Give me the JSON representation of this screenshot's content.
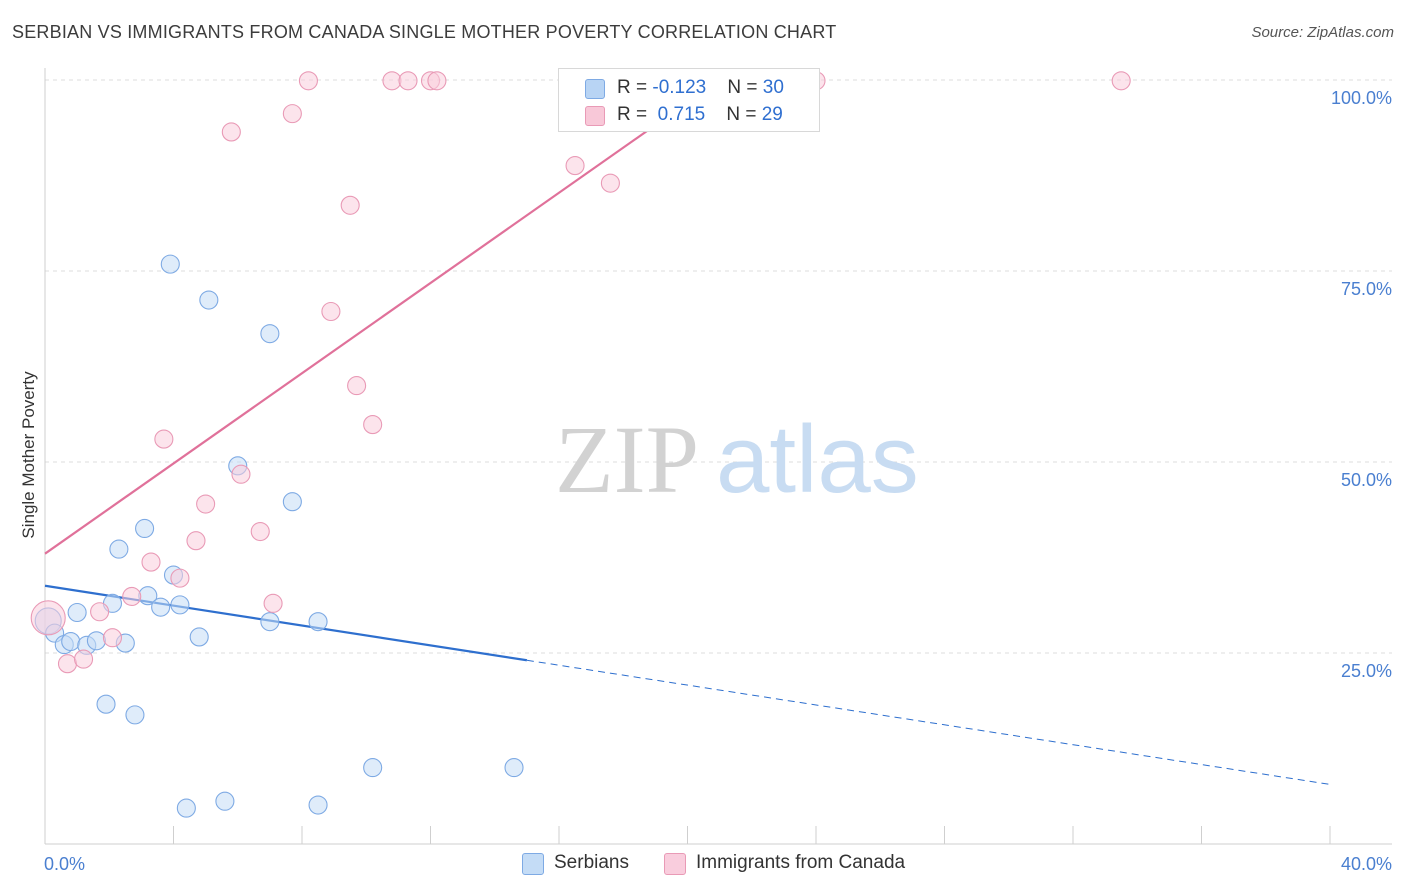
{
  "title": "SERBIAN VS IMMIGRANTS FROM CANADA SINGLE MOTHER POVERTY CORRELATION CHART",
  "source": "Source: ZipAtlas.com",
  "watermark": {
    "zip": "ZIP",
    "atlas": "atlas"
  },
  "legend_stats": [
    {
      "r_label": "R = ",
      "r_value": "-0.123",
      "n_label": "N = ",
      "n_value": "30",
      "color": "#b8d4f4",
      "border": "#7eaae4"
    },
    {
      "r_label": "R = ",
      "r_value": " 0.715",
      "n_label": "N = ",
      "n_value": "29",
      "color": "#f8c8d8",
      "border": "#e99ab6"
    }
  ],
  "chart_data": {
    "type": "scatter",
    "title": "SERBIAN VS IMMIGRANTS FROM CANADA SINGLE MOTHER POVERTY CORRELATION CHART",
    "xlabel": "",
    "ylabel": "Single Mother Poverty",
    "xlim": [
      0,
      40
    ],
    "ylim": [
      0,
      100
    ],
    "x_tick_labels": [
      "0.0%",
      "40.0%"
    ],
    "y_ticks": [
      25,
      50,
      75,
      100
    ],
    "y_tick_labels": [
      "25.0%",
      "50.0%",
      "75.0%",
      "100.0%"
    ],
    "grid": true,
    "series": [
      {
        "name": "Serbians",
        "color": "#7eaae4",
        "fill": "#c4dcf6",
        "points": [
          [
            0.1,
            29.2
          ],
          [
            0.3,
            27.6
          ],
          [
            0.6,
            26.1
          ],
          [
            0.8,
            26.5
          ],
          [
            1.0,
            30.3
          ],
          [
            1.3,
            26.0
          ],
          [
            1.6,
            26.6
          ],
          [
            1.9,
            18.3
          ],
          [
            2.1,
            31.5
          ],
          [
            2.3,
            38.6
          ],
          [
            2.5,
            26.3
          ],
          [
            2.8,
            16.9
          ],
          [
            3.1,
            41.3
          ],
          [
            3.2,
            32.5
          ],
          [
            3.6,
            31.0
          ],
          [
            3.9,
            75.9
          ],
          [
            4.0,
            35.2
          ],
          [
            4.2,
            31.3
          ],
          [
            4.4,
            4.7
          ],
          [
            4.8,
            27.1
          ],
          [
            5.1,
            71.2
          ],
          [
            5.6,
            5.6
          ],
          [
            6.0,
            49.5
          ],
          [
            7.0,
            66.8
          ],
          [
            7.0,
            29.1
          ],
          [
            7.7,
            44.8
          ],
          [
            8.5,
            29.1
          ],
          [
            8.5,
            5.1
          ],
          [
            10.2,
            10.0
          ],
          [
            14.6,
            10.0
          ]
        ]
      },
      {
        "name": "Immigrants from Canada",
        "color": "#e99ab6",
        "fill": "#f9cddd",
        "points": [
          [
            0.1,
            29.6
          ],
          [
            0.7,
            23.6
          ],
          [
            1.2,
            24.2
          ],
          [
            1.7,
            30.4
          ],
          [
            2.1,
            27.0
          ],
          [
            2.7,
            32.4
          ],
          [
            3.3,
            36.9
          ],
          [
            3.7,
            53.0
          ],
          [
            4.2,
            34.8
          ],
          [
            4.7,
            39.7
          ],
          [
            5.0,
            44.5
          ],
          [
            5.8,
            93.2
          ],
          [
            6.1,
            48.4
          ],
          [
            6.7,
            40.9
          ],
          [
            7.1,
            31.5
          ],
          [
            7.7,
            95.6
          ],
          [
            8.2,
            99.9
          ],
          [
            8.9,
            69.7
          ],
          [
            9.5,
            83.6
          ],
          [
            9.7,
            60.0
          ],
          [
            10.2,
            54.9
          ],
          [
            10.8,
            99.9
          ],
          [
            11.3,
            99.9
          ],
          [
            12.0,
            99.9
          ],
          [
            12.2,
            99.9
          ],
          [
            16.5,
            88.8
          ],
          [
            17.6,
            86.5
          ],
          [
            24.0,
            99.9
          ],
          [
            33.5,
            99.9
          ]
        ]
      }
    ],
    "trend_lines": [
      {
        "series": "Serbians",
        "color": "#2e6fce",
        "x0": 0,
        "y0": 33.8,
        "x_solid_end": 15.0,
        "x1": 40,
        "y1": 7.8
      },
      {
        "series": "Immigrants from Canada",
        "color": "#e0719a",
        "x0": 0,
        "y0": 38.0,
        "x1": 21.0,
        "y1": 100.0
      }
    ]
  }
}
